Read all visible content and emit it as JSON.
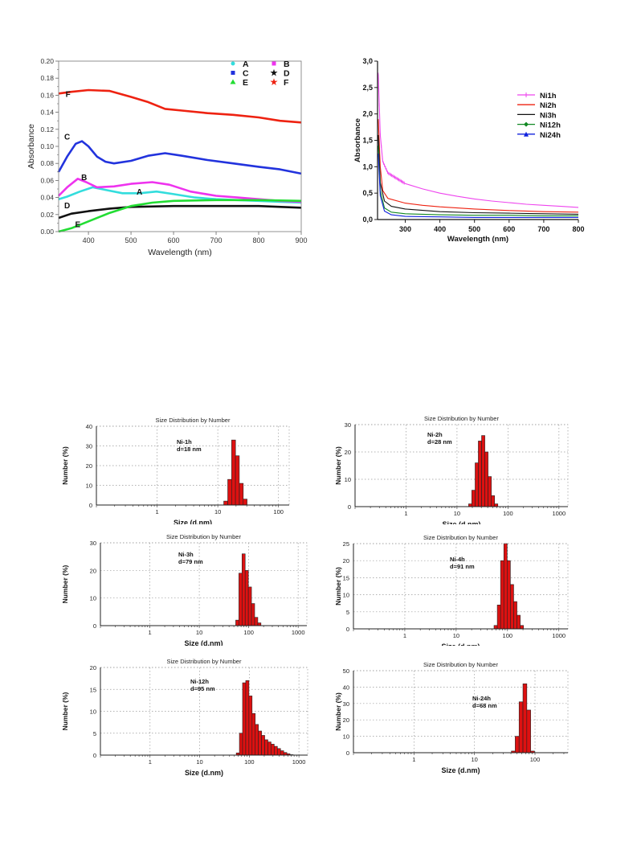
{
  "chart_data": [
    {
      "type": "line",
      "xlabel": "Wavelength (nm)",
      "ylabel": "Absorbance",
      "xlim": [
        330,
        900
      ],
      "ylim": [
        0,
        0.2
      ],
      "xticks": [
        "400",
        "500",
        "600",
        "700",
        "800",
        "900"
      ],
      "yticks": [
        "0.00",
        "0.02",
        "0.04",
        "0.06",
        "0.08",
        "0.10",
        "0.12",
        "0.14",
        "0.16",
        "0.18",
        "0.20"
      ],
      "legend": "top-right",
      "series": [
        {
          "name": "A",
          "color": "#33dddd",
          "label_at": [
            520,
            0.046
          ],
          "points": [
            [
              330,
              0.038
            ],
            [
              350,
              0.041
            ],
            [
              380,
              0.047
            ],
            [
              410,
              0.052
            ],
            [
              440,
              0.049
            ],
            [
              480,
              0.045
            ],
            [
              520,
              0.045
            ],
            [
              560,
              0.047
            ],
            [
              600,
              0.044
            ],
            [
              650,
              0.04
            ],
            [
              700,
              0.038
            ],
            [
              750,
              0.037
            ],
            [
              800,
              0.036
            ],
            [
              850,
              0.035
            ],
            [
              900,
              0.034
            ]
          ]
        },
        {
          "name": "B",
          "color": "#ee33ee",
          "label_at": [
            390,
            0.063
          ],
          "points": [
            [
              330,
              0.042
            ],
            [
              350,
              0.052
            ],
            [
              375,
              0.062
            ],
            [
              395,
              0.058
            ],
            [
              420,
              0.052
            ],
            [
              460,
              0.053
            ],
            [
              500,
              0.056
            ],
            [
              550,
              0.058
            ],
            [
              590,
              0.055
            ],
            [
              640,
              0.047
            ],
            [
              700,
              0.042
            ],
            [
              750,
              0.04
            ],
            [
              800,
              0.038
            ],
            [
              850,
              0.036
            ],
            [
              900,
              0.035
            ]
          ]
        },
        {
          "name": "C",
          "color": "#2233dd",
          "label_at": [
            350,
            0.111
          ],
          "points": [
            [
              330,
              0.07
            ],
            [
              350,
              0.088
            ],
            [
              370,
              0.103
            ],
            [
              385,
              0.106
            ],
            [
              400,
              0.1
            ],
            [
              420,
              0.088
            ],
            [
              440,
              0.082
            ],
            [
              460,
              0.08
            ],
            [
              500,
              0.083
            ],
            [
              540,
              0.089
            ],
            [
              580,
              0.092
            ],
            [
              620,
              0.089
            ],
            [
              680,
              0.084
            ],
            [
              740,
              0.08
            ],
            [
              800,
              0.076
            ],
            [
              850,
              0.073
            ],
            [
              900,
              0.068
            ]
          ]
        },
        {
          "name": "D",
          "color": "#111111",
          "label_at": [
            350,
            0.03
          ],
          "points": [
            [
              330,
              0.016
            ],
            [
              360,
              0.021
            ],
            [
              400,
              0.024
            ],
            [
              450,
              0.027
            ],
            [
              500,
              0.029
            ],
            [
              600,
              0.03
            ],
            [
              700,
              0.03
            ],
            [
              800,
              0.03
            ],
            [
              900,
              0.028
            ]
          ]
        },
        {
          "name": "E",
          "color": "#22dd33",
          "label_at": [
            375,
            0.008
          ],
          "points": [
            [
              330,
              0.0
            ],
            [
              360,
              0.004
            ],
            [
              400,
              0.012
            ],
            [
              450,
              0.022
            ],
            [
              500,
              0.03
            ],
            [
              550,
              0.034
            ],
            [
              600,
              0.036
            ],
            [
              700,
              0.037
            ],
            [
              800,
              0.037
            ],
            [
              900,
              0.036
            ]
          ]
        },
        {
          "name": "F",
          "color": "#ee2211",
          "label_at": [
            352,
            0.161
          ],
          "points": [
            [
              330,
              0.162
            ],
            [
              360,
              0.164
            ],
            [
              400,
              0.166
            ],
            [
              450,
              0.165
            ],
            [
              500,
              0.158
            ],
            [
              540,
              0.152
            ],
            [
              580,
              0.144
            ],
            [
              620,
              0.142
            ],
            [
              680,
              0.139
            ],
            [
              740,
              0.137
            ],
            [
              800,
              0.134
            ],
            [
              850,
              0.13
            ],
            [
              900,
              0.128
            ]
          ]
        }
      ]
    },
    {
      "type": "line",
      "xlabel": "Wavelength (nm)",
      "ylabel": "Absorbance",
      "xlim": [
        220,
        800
      ],
      "ylim": [
        0,
        3.0
      ],
      "xticks": [
        "300",
        "400",
        "500",
        "600",
        "700",
        "800"
      ],
      "yticks": [
        "0,0",
        "0,5",
        "1,0",
        "1,5",
        "2,0",
        "2,5",
        "3,0"
      ],
      "legend": "right",
      "series": [
        {
          "name": "Ni1h",
          "color": "#ee44ee",
          "points": [
            [
              222,
              2.75
            ],
            [
              228,
              1.6
            ],
            [
              235,
              1.1
            ],
            [
              250,
              0.88
            ],
            [
              300,
              0.68
            ],
            [
              350,
              0.58
            ],
            [
              400,
              0.5
            ],
            [
              450,
              0.44
            ],
            [
              500,
              0.39
            ],
            [
              550,
              0.35
            ],
            [
              600,
              0.32
            ],
            [
              650,
              0.29
            ],
            [
              700,
              0.27
            ],
            [
              750,
              0.25
            ],
            [
              800,
              0.23
            ]
          ]
        },
        {
          "name": "Ni2h",
          "color": "#ee2211",
          "points": [
            [
              222,
              1.9
            ],
            [
              228,
              1.0
            ],
            [
              235,
              0.55
            ],
            [
              250,
              0.4
            ],
            [
              300,
              0.31
            ],
            [
              350,
              0.27
            ],
            [
              400,
              0.24
            ],
            [
              500,
              0.2
            ],
            [
              600,
              0.17
            ],
            [
              700,
              0.15
            ],
            [
              800,
              0.14
            ]
          ]
        },
        {
          "name": "Ni3h",
          "color": "#111111",
          "points": [
            [
              222,
              1.6
            ],
            [
              228,
              0.7
            ],
            [
              240,
              0.35
            ],
            [
              260,
              0.25
            ],
            [
              300,
              0.2
            ],
            [
              400,
              0.15
            ],
            [
              500,
              0.13
            ],
            [
              600,
              0.12
            ],
            [
              700,
              0.11
            ],
            [
              800,
              0.1
            ]
          ]
        },
        {
          "name": "Ni12h",
          "color": "#118822",
          "points": [
            [
              222,
              1.4
            ],
            [
              228,
              0.55
            ],
            [
              240,
              0.22
            ],
            [
              260,
              0.14
            ],
            [
              300,
              0.11
            ],
            [
              400,
              0.09
            ],
            [
              500,
              0.08
            ],
            [
              600,
              0.08
            ],
            [
              700,
              0.07
            ],
            [
              800,
              0.07
            ]
          ]
        },
        {
          "name": "Ni24h",
          "color": "#1122dd",
          "points": [
            [
              222,
              1.25
            ],
            [
              228,
              0.45
            ],
            [
              240,
              0.16
            ],
            [
              260,
              0.09
            ],
            [
              300,
              0.06
            ],
            [
              400,
              0.05
            ],
            [
              500,
              0.04
            ],
            [
              600,
              0.04
            ],
            [
              700,
              0.04
            ],
            [
              800,
              0.04
            ]
          ]
        }
      ]
    },
    {
      "type": "bar",
      "title": "Size Distribution by Number",
      "annotation": [
        "Ni-1h",
        "d=18 nm"
      ],
      "xlabel": "Size (d.nm)",
      "ylabel": "Number (%)",
      "xscale": "log",
      "xlim": [
        0.1,
        150
      ],
      "ylim": [
        0,
        40
      ],
      "xticks": [
        {
          "value": 1,
          "label": "1"
        },
        {
          "value": 10,
          "label": "10"
        },
        {
          "value": 100,
          "label": "100"
        }
      ],
      "yticks": [
        "0",
        "10",
        "20",
        "30",
        "40"
      ],
      "bars": [
        [
          13.5,
          2
        ],
        [
          15.7,
          13
        ],
        [
          18.2,
          33
        ],
        [
          21.0,
          25
        ],
        [
          24.4,
          11
        ],
        [
          28.2,
          3
        ]
      ]
    },
    {
      "type": "bar",
      "title": "Size Distribution by Number",
      "annotation": [
        "Ni-2h",
        "d=28 nm"
      ],
      "xlabel": "Size (d.nm)",
      "ylabel": "Number (%)",
      "xscale": "log",
      "xlim": [
        0.1,
        1500
      ],
      "ylim": [
        0,
        30
      ],
      "xticks": [
        {
          "value": 1,
          "label": "1"
        },
        {
          "value": 10,
          "label": "10"
        },
        {
          "value": 100,
          "label": "100"
        },
        {
          "value": 1000,
          "label": "1000"
        }
      ],
      "yticks": [
        "0",
        "10",
        "20",
        "30"
      ],
      "bars": [
        [
          18.2,
          1
        ],
        [
          21.0,
          6
        ],
        [
          24.4,
          16
        ],
        [
          28.2,
          24
        ],
        [
          32.7,
          26
        ],
        [
          37.8,
          20
        ],
        [
          43.8,
          11
        ],
        [
          50.7,
          4
        ],
        [
          58.8,
          1
        ]
      ]
    },
    {
      "type": "bar",
      "title": "Size Distribution by Number",
      "annotation": [
        "Ni-3h",
        "d=79 nm"
      ],
      "xlabel": "Size (d.nm)",
      "ylabel": "Number (%)",
      "xscale": "log",
      "xlim": [
        0.1,
        1500
      ],
      "ylim": [
        0,
        30
      ],
      "xticks": [
        {
          "value": 1,
          "label": "1"
        },
        {
          "value": 10,
          "label": "10"
        },
        {
          "value": 100,
          "label": "100"
        },
        {
          "value": 1000,
          "label": "1000"
        }
      ],
      "yticks": [
        "0",
        "10",
        "20",
        "30"
      ],
      "bars": [
        [
          58.8,
          2
        ],
        [
          68.1,
          19
        ],
        [
          78.8,
          26
        ],
        [
          91.3,
          20
        ],
        [
          105.7,
          14
        ],
        [
          122.4,
          8
        ],
        [
          141.8,
          3
        ],
        [
          164.2,
          1
        ]
      ]
    },
    {
      "type": "bar",
      "title": "Size Distribution by Number",
      "annotation": [
        "Ni-4h",
        "d=91 nm"
      ],
      "xlabel": "Size (d.nm)",
      "ylabel": "Number (%)",
      "xscale": "log",
      "xlim": [
        0.1,
        1500
      ],
      "ylim": [
        0,
        25
      ],
      "xticks": [
        {
          "value": 1,
          "label": "1"
        },
        {
          "value": 10,
          "label": "10"
        },
        {
          "value": 100,
          "label": "100"
        },
        {
          "value": 1000,
          "label": "1000"
        }
      ],
      "yticks": [
        "0",
        "5",
        "10",
        "15",
        "20",
        "25"
      ],
      "bars": [
        [
          58.8,
          1
        ],
        [
          68.1,
          7
        ],
        [
          78.8,
          20
        ],
        [
          91.3,
          25
        ],
        [
          105.7,
          20
        ],
        [
          122.4,
          13
        ],
        [
          141.8,
          8
        ],
        [
          164.2,
          4
        ],
        [
          190.1,
          1
        ]
      ]
    },
    {
      "type": "bar",
      "title": "Size Distribution by Number",
      "annotation": [
        "Ni-12h",
        "d=95 nm"
      ],
      "xlabel": "Size (d.nm)",
      "ylabel": "Number (%)",
      "xscale": "log",
      "xlim": [
        0.1,
        1500
      ],
      "ylim": [
        0,
        20
      ],
      "xticks": [
        {
          "value": 1,
          "label": "1"
        },
        {
          "value": 10,
          "label": "10"
        },
        {
          "value": 100,
          "label": "100"
        },
        {
          "value": 1000,
          "label": "1000"
        }
      ],
      "yticks": [
        "0",
        "5",
        "10",
        "15",
        "20"
      ],
      "bars": [
        [
          58.8,
          0.5
        ],
        [
          68.1,
          5
        ],
        [
          78.8,
          16.5
        ],
        [
          91.3,
          17
        ],
        [
          105.7,
          13.5
        ],
        [
          122.4,
          9.5
        ],
        [
          141.8,
          7
        ],
        [
          164.2,
          5.5
        ],
        [
          190.1,
          4.5
        ],
        [
          220.2,
          3.5
        ],
        [
          255.0,
          3
        ],
        [
          295.3,
          2.5
        ],
        [
          342.0,
          2
        ],
        [
          396.1,
          1.5
        ],
        [
          458.7,
          1
        ],
        [
          531.2,
          0.6
        ],
        [
          615.1,
          0.3
        ],
        [
          712.4,
          0.1
        ]
      ]
    },
    {
      "type": "bar",
      "title": "Size Distribution by Number",
      "annotation": [
        "Ni-24h",
        "d=68 nm"
      ],
      "xlabel": "Size (d.nm)",
      "ylabel": "Number (%)",
      "xscale": "log",
      "xlim": [
        0.1,
        350
      ],
      "ylim": [
        0,
        50
      ],
      "xticks": [
        {
          "value": 1,
          "label": "1"
        },
        {
          "value": 10,
          "label": "10"
        },
        {
          "value": 100,
          "label": "100"
        }
      ],
      "yticks": [
        "0",
        "10",
        "20",
        "30",
        "40",
        "50"
      ],
      "bars": [
        [
          43.8,
          1
        ],
        [
          50.7,
          10
        ],
        [
          58.8,
          31
        ],
        [
          68.1,
          42
        ],
        [
          78.8,
          26
        ],
        [
          91.3,
          1
        ]
      ]
    }
  ]
}
